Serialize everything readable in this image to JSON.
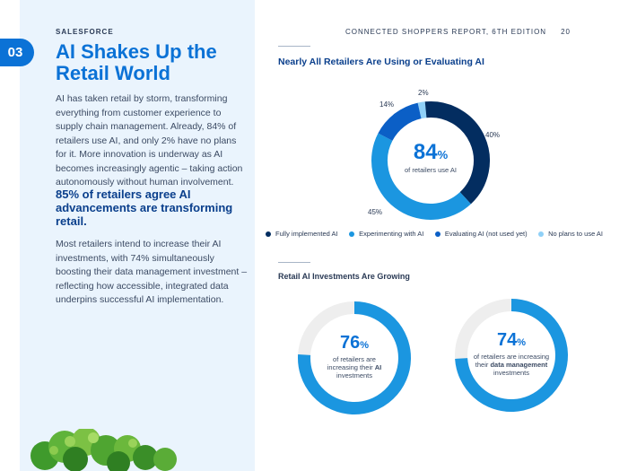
{
  "header": {
    "brand": "SALESFORCE",
    "report_title": "CONNECTED SHOPPERS REPORT, 6TH EDITION",
    "page_number": "20"
  },
  "section": {
    "number": "03"
  },
  "article": {
    "title": "AI Shakes Up the Retail World",
    "intro": "AI has taken retail by storm, transforming everything from customer experience to supply chain management. Already, 84% of retailers use AI, and only 2% have no plans for it. More innovation is underway as AI becomes increasingly agentic – taking action autonomously without human involvement.",
    "highlight": "85% of retailers agree AI advancements are transforming retail.",
    "body": "Most retailers intend to increase their AI investments, with 74% simultaneously boosting their data management investment – reflecting how accessible, integrated data underpins successful AI implementation."
  },
  "chart_data": [
    {
      "type": "pie",
      "title": "Nearly All Retailers Are Using or Evaluating AI",
      "center_value": "84",
      "center_unit": "%",
      "center_caption": "of retailers use AI",
      "slices": [
        {
          "label": "Fully implemented AI",
          "value": 40,
          "value_label": "40%",
          "color": "#032d60"
        },
        {
          "label": "Experimenting with AI",
          "value": 45,
          "value_label": "45%",
          "color": "#1b96e0"
        },
        {
          "label": "Evaluating AI (not used yet)",
          "value": 14,
          "value_label": "14%",
          "color": "#0b5fc6"
        },
        {
          "label": "No plans to use AI",
          "value": 2,
          "value_label": "2%",
          "color": "#8fd0f7"
        }
      ]
    },
    {
      "type": "pie",
      "title": "Retail AI Investments Are Growing",
      "items": [
        {
          "value": 76,
          "center_value": "76",
          "center_unit": "%",
          "caption_pre": "of retailers are increasing their",
          "caption_bold": "AI",
          "caption_post": "investments",
          "color": "#1b96e0",
          "track_color": "#eeeeee"
        },
        {
          "value": 74,
          "center_value": "74",
          "center_unit": "%",
          "caption_pre": "of retailers are increasing their",
          "caption_bold": "data management",
          "caption_post": "investments",
          "color": "#1b96e0",
          "track_color": "#eeeeee"
        }
      ]
    }
  ]
}
